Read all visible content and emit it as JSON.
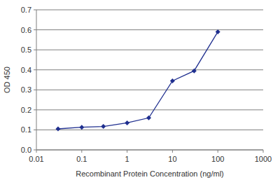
{
  "chart_data": {
    "type": "line",
    "x_label": "Recombinant Protein Concentration (ng/ml)",
    "y_label": "OD 450",
    "x": [
      0.03,
      0.1,
      0.3,
      1,
      3,
      10,
      30,
      100
    ],
    "values": [
      0.105,
      0.113,
      0.117,
      0.135,
      0.16,
      0.345,
      0.395,
      0.59
    ],
    "color": "#1f2f8f",
    "marker": "diamond",
    "log": "x",
    "grid": true,
    "xlim": [
      0.01,
      1000
    ],
    "xticks": [
      0.01,
      0.1,
      1,
      10,
      100,
      1000
    ],
    "ylim": [
      0,
      0.7
    ],
    "yticks": [
      {
        "value": 0,
        "label": "0.0"
      },
      0.1,
      0.2,
      0.3,
      0.4,
      0.5,
      0.6,
      0.7
    ]
  }
}
